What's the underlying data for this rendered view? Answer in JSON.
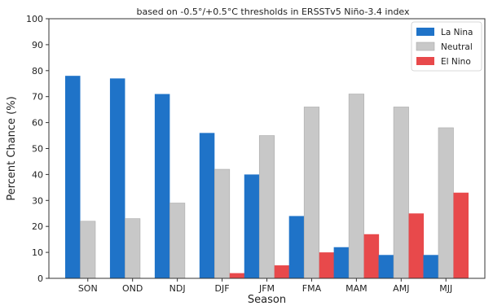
{
  "chart_data": {
    "type": "bar",
    "subtitle": "based on -0.5°/+0.5°C thresholds in ERSSTv5 Niño-3.4 index",
    "xlabel": "Season",
    "ylabel": "Percent Chance (%)",
    "ylim": [
      0,
      100
    ],
    "yticks": [
      0,
      10,
      20,
      30,
      40,
      50,
      60,
      70,
      80,
      90,
      100
    ],
    "categories": [
      "SON",
      "OND",
      "NDJ",
      "DJF",
      "JFM",
      "FMA",
      "MAM",
      "AMJ",
      "MJJ"
    ],
    "series": [
      {
        "name": "La Nina",
        "color": "#1f73c8",
        "values": [
          78,
          77,
          71,
          56,
          40,
          24,
          12,
          9,
          9
        ]
      },
      {
        "name": "Neutral",
        "color": "#c8c8c8",
        "values": [
          22,
          23,
          29,
          42,
          55,
          66,
          71,
          66,
          58
        ]
      },
      {
        "name": "El Nino",
        "color": "#e8494b",
        "values": [
          0,
          0,
          0,
          2,
          5,
          10,
          17,
          25,
          33
        ]
      }
    ],
    "legend_position": "top-right",
    "grid": false
  }
}
